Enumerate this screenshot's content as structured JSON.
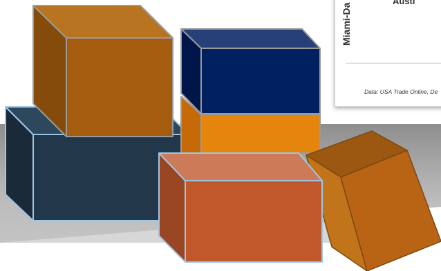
{
  "card": {
    "city_label": "Austi",
    "vertical_label": "Miami-Da",
    "source_text": "Data: USA Trade Online, De"
  },
  "colors": {
    "background_band": "#a3a3a3",
    "navy": "#00205f",
    "steel_blue": "#22384a",
    "brown": "#a55c0e",
    "orange": "#e6850d",
    "rust": "#c0582c",
    "box_outline": "#9ec6e6"
  }
}
